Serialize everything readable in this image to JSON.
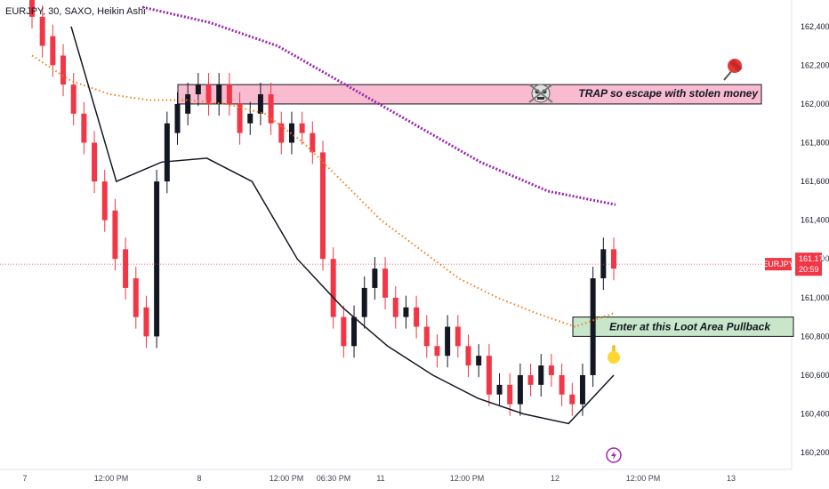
{
  "chart_data": {
    "type": "candlestick",
    "title": "EURJPY, 30, SAXO, Heikin Ashi",
    "symbol": "EURJPY",
    "last_price": "161.173",
    "countdown": "20:59",
    "y_ticks": [
      "162,400",
      "162,200",
      "162,000",
      "161,800",
      "161,600",
      "161,400",
      "161,200",
      "161,000",
      "160,800",
      "160,600",
      "160,400",
      "160,200"
    ],
    "y_tick_values": [
      162.4,
      162.2,
      162.0,
      161.8,
      161.6,
      161.4,
      161.2,
      161.0,
      160.8,
      160.6,
      160.4,
      160.2
    ],
    "ylim": [
      160.15,
      162.5
    ],
    "x_ticks": [
      "7",
      "12:00 PM",
      "8",
      "12:00 PM",
      "06:30 PM",
      "11",
      "12:00 PM",
      "12",
      "12:00 PM",
      "13"
    ],
    "annotations": {
      "trap_zone": {
        "label": "TRAP so escape with stolen money",
        "price_low": 162.0,
        "price_high": 162.1
      },
      "loot_zone": {
        "label": "Enter at this Loot Area Pullback",
        "price_low": 160.8,
        "price_high": 160.9
      }
    },
    "colors": {
      "up": "#131722",
      "down": "#f23645",
      "ma_fast": "#f57f17",
      "ma_slow": "#9c27b0",
      "trap_fill": "#f8bbd0",
      "loot_fill": "#c8e6c9",
      "badge": "#f23645"
    },
    "candles": [
      [
        162.55,
        162.45
      ],
      [
        162.45,
        162.3
      ],
      [
        162.35,
        162.2
      ],
      [
        162.25,
        162.1
      ],
      [
        162.1,
        161.95
      ],
      [
        161.95,
        161.8
      ],
      [
        161.8,
        161.6
      ],
      [
        161.6,
        161.4
      ],
      [
        161.45,
        161.2
      ],
      [
        161.25,
        161.05
      ],
      [
        161.1,
        160.9
      ],
      [
        160.95,
        160.8
      ],
      [
        160.8,
        161.6
      ],
      [
        161.6,
        161.9
      ],
      [
        161.85,
        162.0
      ],
      [
        161.95,
        162.05
      ],
      [
        162.05,
        162.1
      ],
      [
        162.1,
        162.0
      ],
      [
        162.0,
        162.1
      ],
      [
        162.1,
        162.0
      ],
      [
        162.0,
        161.85
      ],
      [
        161.9,
        161.95
      ],
      [
        161.95,
        162.05
      ],
      [
        162.05,
        161.9
      ],
      [
        161.9,
        161.8
      ],
      [
        161.8,
        161.9
      ],
      [
        161.9,
        161.85
      ],
      [
        161.85,
        161.75
      ],
      [
        161.75,
        161.2
      ],
      [
        161.2,
        160.9
      ],
      [
        160.9,
        160.75
      ],
      [
        160.75,
        160.9
      ],
      [
        160.9,
        161.05
      ],
      [
        161.05,
        161.15
      ],
      [
        161.15,
        161.0
      ],
      [
        161.0,
        160.9
      ],
      [
        160.9,
        160.95
      ],
      [
        160.95,
        160.85
      ],
      [
        160.85,
        160.75
      ],
      [
        160.75,
        160.7
      ],
      [
        160.7,
        160.85
      ],
      [
        160.85,
        160.75
      ],
      [
        160.75,
        160.65
      ],
      [
        160.65,
        160.7
      ],
      [
        160.7,
        160.5
      ],
      [
        160.5,
        160.55
      ],
      [
        160.55,
        160.45
      ],
      [
        160.45,
        160.6
      ],
      [
        160.6,
        160.55
      ],
      [
        160.55,
        160.65
      ],
      [
        160.65,
        160.6
      ],
      [
        160.6,
        160.5
      ],
      [
        160.5,
        160.45
      ],
      [
        160.45,
        160.6
      ],
      [
        160.6,
        161.1
      ],
      [
        161.1,
        161.25
      ],
      [
        161.25,
        161.15
      ]
    ],
    "ma_fast": [
      162.25,
      162.12,
      162.05,
      162.02,
      162.02,
      162.0,
      161.95,
      161.8,
      161.6,
      161.4,
      161.25,
      161.1,
      161.0,
      160.92,
      160.85,
      160.92
    ],
    "ma_slow": [
      162.5,
      162.42,
      162.3,
      162.1,
      161.9,
      161.7,
      161.55,
      161.48
    ],
    "ma_dark": [
      162.4,
      161.6,
      161.7,
      161.72,
      161.6,
      161.2,
      160.95,
      160.75,
      160.6,
      160.48,
      160.4,
      160.35,
      160.6
    ]
  }
}
